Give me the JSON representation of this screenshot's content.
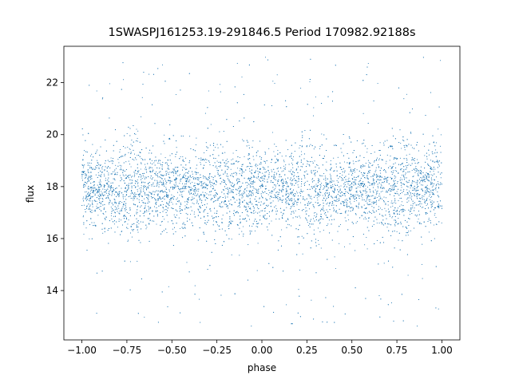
{
  "chart_data": {
    "type": "scatter",
    "title": "1SWASPJ161253.19-291846.5 Period 170982.92188s",
    "xlabel": "phase",
    "ylabel": "flux",
    "xlim": [
      -1.1,
      1.1
    ],
    "ylim": [
      12.1,
      23.4
    ],
    "x_ticks": [
      -1.0,
      -0.75,
      -0.5,
      -0.25,
      0.0,
      0.25,
      0.5,
      0.75,
      1.0
    ],
    "x_tick_labels": [
      "−1.00",
      "−0.75",
      "−0.50",
      "−0.25",
      "0.00",
      "0.25",
      "0.50",
      "0.75",
      "1.00"
    ],
    "y_ticks": [
      14,
      16,
      18,
      20,
      22
    ],
    "y_tick_labels": [
      "14",
      "16",
      "18",
      "20",
      "22"
    ],
    "grid": false,
    "marker_color": "#1f77b4",
    "series": [
      {
        "phase_range": [
          -1.0,
          1.0
        ],
        "flux_mean": 17.9,
        "dense_clumps_phase": [
          -0.75,
          -0.25,
          0.25,
          0.75
        ],
        "dense_clump_flux_range": [
          16.3,
          19.6
        ],
        "overall_flux_range": [
          12.6,
          23.0
        ]
      }
    ]
  }
}
